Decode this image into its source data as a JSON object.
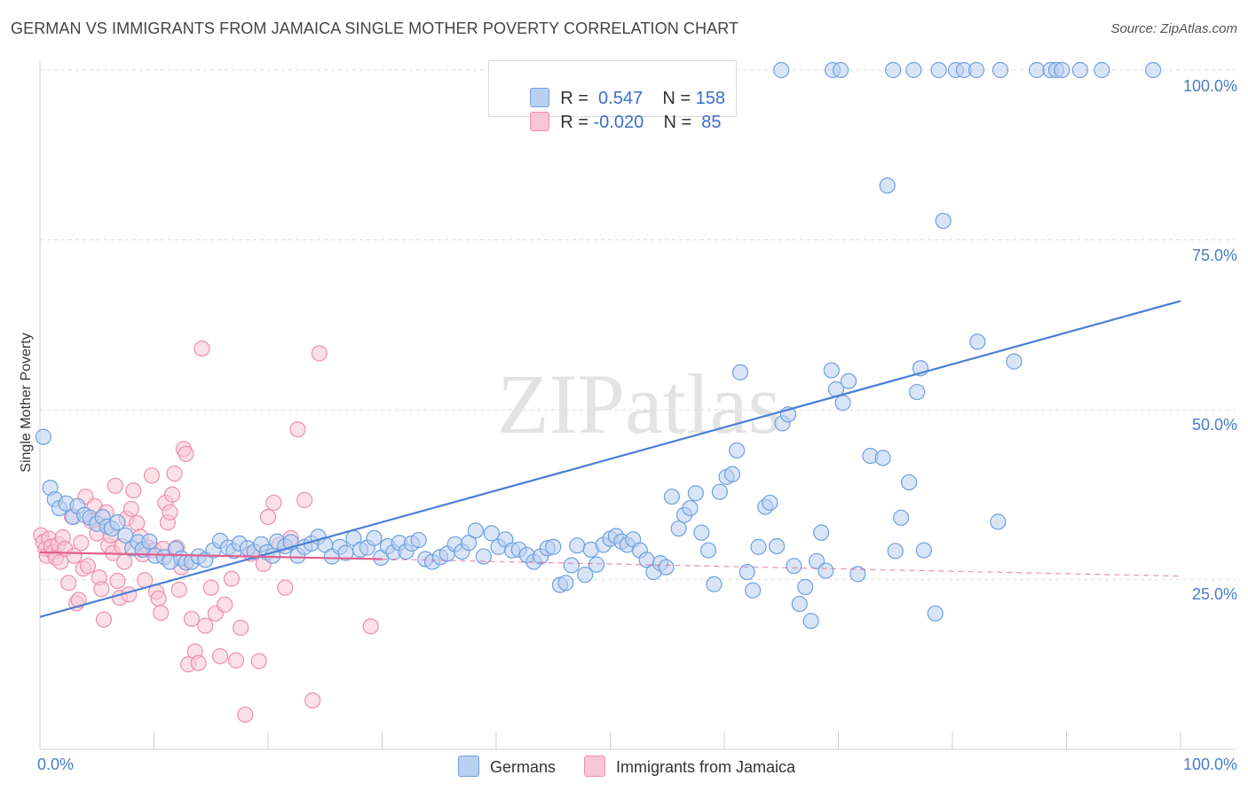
{
  "title": "GERMAN VS IMMIGRANTS FROM JAMAICA SINGLE MOTHER POVERTY CORRELATION CHART",
  "source": "Source: ZipAtlas.com",
  "watermark": "ZIPatlas",
  "legend": {
    "rows": [
      {
        "r_label": "R =",
        "r_value": "0.547",
        "n_label": "N =",
        "n_value": "158",
        "color": "#6fa0e0",
        "fill": "#b9d0f1"
      },
      {
        "r_label": "R =",
        "r_value": "-0.020",
        "n_label": "N =",
        "n_value": "85",
        "color": "#ef8fae",
        "fill": "#f8c6d6"
      }
    ]
  },
  "bottom_legend": [
    {
      "label": "Germans",
      "color": "#6fa0e0",
      "fill": "#b9d0f1"
    },
    {
      "label": "Immigrants from Jamaica",
      "color": "#ef8fae",
      "fill": "#f8c6d6"
    }
  ],
  "chart_data": {
    "type": "scatter",
    "title": "GERMAN VS IMMIGRANTS FROM JAMAICA SINGLE MOTHER POVERTY CORRELATION CHART",
    "xlabel": "",
    "ylabel": "Single Mother Poverty",
    "xlim": [
      0,
      100
    ],
    "ylim": [
      0,
      102
    ],
    "x_tick_labels": [
      "0.0%",
      "100.0%"
    ],
    "y_ticks": [
      25,
      50,
      75,
      100
    ],
    "y_tick_labels": [
      "25.0%",
      "50.0%",
      "75.0%",
      "100.0%"
    ],
    "series": [
      {
        "name": "Germans",
        "color": "#4a7fd4",
        "trend": {
          "x0": 0,
          "y0": 19.5,
          "x1": 100,
          "y1": 66
        },
        "points": [
          [
            0.3,
            46
          ],
          [
            0.9,
            38.5
          ],
          [
            1.3,
            36.8
          ],
          [
            1.7,
            35.5
          ],
          [
            2.3,
            36.2
          ],
          [
            2.9,
            34.2
          ],
          [
            3.3,
            35.8
          ],
          [
            3.9,
            34.5
          ],
          [
            4.4,
            34.1
          ],
          [
            5,
            33.2
          ],
          [
            5.5,
            34.2
          ],
          [
            5.9,
            32.8
          ],
          [
            6.3,
            32.5
          ],
          [
            6.8,
            33.4
          ],
          [
            7.5,
            31.5
          ],
          [
            8.1,
            29.6
          ],
          [
            8.6,
            30.5
          ],
          [
            9,
            29.4
          ],
          [
            9.6,
            30.6
          ],
          [
            10.1,
            28.5
          ],
          [
            10.9,
            28.3
          ],
          [
            11.4,
            27.6
          ],
          [
            11.9,
            29.5
          ],
          [
            12.4,
            28.1
          ],
          [
            12.8,
            27.5
          ],
          [
            13.3,
            27.6
          ],
          [
            13.9,
            28.4
          ],
          [
            14.5,
            27.9
          ],
          [
            15.2,
            29.3
          ],
          [
            15.8,
            30.7
          ],
          [
            16.5,
            29.7
          ],
          [
            17,
            29.2
          ],
          [
            17.5,
            30.3
          ],
          [
            18.2,
            29.6
          ],
          [
            18.8,
            29.1
          ],
          [
            19.4,
            30.2
          ],
          [
            19.9,
            29
          ],
          [
            20.4,
            28.5
          ],
          [
            20.8,
            30.6
          ],
          [
            21.5,
            29.9
          ],
          [
            22,
            30.5
          ],
          [
            22.6,
            28.5
          ],
          [
            23.2,
            29.8
          ],
          [
            23.8,
            30.3
          ],
          [
            24.4,
            31.3
          ],
          [
            25,
            30.1
          ],
          [
            25.6,
            28.4
          ],
          [
            26.3,
            29.8
          ],
          [
            26.8,
            28.9
          ],
          [
            27.5,
            31.1
          ],
          [
            28.1,
            29.4
          ],
          [
            28.7,
            29.7
          ],
          [
            29.3,
            31.1
          ],
          [
            29.9,
            28.2
          ],
          [
            30.5,
            29.9
          ],
          [
            31,
            29
          ],
          [
            31.5,
            30.4
          ],
          [
            32.1,
            29.1
          ],
          [
            32.6,
            30.3
          ],
          [
            33.2,
            30.8
          ],
          [
            33.8,
            28
          ],
          [
            34.4,
            27.6
          ],
          [
            35.1,
            28.3
          ],
          [
            35.7,
            28.8
          ],
          [
            36.4,
            30.2
          ],
          [
            37,
            29.1
          ],
          [
            37.6,
            30.4
          ],
          [
            38.2,
            32.2
          ],
          [
            38.9,
            28.4
          ],
          [
            39.6,
            31.8
          ],
          [
            40.2,
            29.8
          ],
          [
            40.8,
            30.9
          ],
          [
            41.4,
            29.3
          ],
          [
            42,
            29.4
          ],
          [
            42.7,
            28.6
          ],
          [
            43.3,
            27.6
          ],
          [
            43.9,
            28.4
          ],
          [
            44.5,
            29.6
          ],
          [
            45,
            29.8
          ],
          [
            45.6,
            24.2
          ],
          [
            46.1,
            24.5
          ],
          [
            46.6,
            27.1
          ],
          [
            47.1,
            30
          ],
          [
            47.8,
            25.7
          ],
          [
            48.3,
            29.4
          ],
          [
            48.8,
            27.2
          ],
          [
            49.4,
            30.1
          ],
          [
            50,
            31
          ],
          [
            50.5,
            31.4
          ],
          [
            51,
            30.6
          ],
          [
            51.5,
            30.1
          ],
          [
            52,
            30.9
          ],
          [
            52.6,
            29.3
          ],
          [
            53.2,
            27.9
          ],
          [
            53.8,
            26.1
          ],
          [
            54.4,
            27.4
          ],
          [
            54.9,
            26.8
          ],
          [
            55.4,
            37.2
          ],
          [
            56,
            32.5
          ],
          [
            56.5,
            34.5
          ],
          [
            57,
            35.5
          ],
          [
            57.5,
            37.7
          ],
          [
            58,
            31.9
          ],
          [
            58.6,
            29.3
          ],
          [
            59.1,
            24.3
          ],
          [
            59.6,
            37.9
          ],
          [
            60.2,
            40.1
          ],
          [
            60.7,
            40.5
          ],
          [
            61.1,
            44
          ],
          [
            61.4,
            55.5
          ],
          [
            62,
            26.1
          ],
          [
            62.5,
            23.4
          ],
          [
            63,
            29.8
          ],
          [
            63.6,
            35.7
          ],
          [
            64,
            36.3
          ],
          [
            64.6,
            29.9
          ],
          [
            65.1,
            48
          ],
          [
            65.6,
            49.3
          ],
          [
            66.1,
            27
          ],
          [
            66.6,
            21.4
          ],
          [
            67.1,
            23.9
          ],
          [
            67.6,
            18.9
          ],
          [
            68.1,
            27.7
          ],
          [
            68.5,
            31.9
          ],
          [
            68.9,
            26.3
          ],
          [
            69.4,
            55.8
          ],
          [
            69.8,
            53
          ],
          [
            70.4,
            51
          ],
          [
            70.9,
            54.2
          ],
          [
            71.7,
            25.8
          ],
          [
            72.8,
            43.2
          ],
          [
            73.9,
            42.9
          ],
          [
            74.3,
            83
          ],
          [
            75,
            29.2
          ],
          [
            75.5,
            34.1
          ],
          [
            76.2,
            39.3
          ],
          [
            76.9,
            52.6
          ],
          [
            77.2,
            56.1
          ],
          [
            77.5,
            29.3
          ],
          [
            78.5,
            20
          ],
          [
            79.2,
            77.8
          ],
          [
            82.2,
            60
          ],
          [
            84,
            33.5
          ],
          [
            85.4,
            57.1
          ],
          [
            65,
            100
          ],
          [
            69.5,
            100
          ],
          [
            70.2,
            100
          ],
          [
            74.8,
            100
          ],
          [
            76.6,
            100
          ],
          [
            78.8,
            100
          ],
          [
            80.3,
            100
          ],
          [
            81,
            100
          ],
          [
            82.1,
            100
          ],
          [
            84.2,
            100
          ],
          [
            87.4,
            100
          ],
          [
            88.6,
            100
          ],
          [
            89.1,
            100
          ],
          [
            89.6,
            100
          ],
          [
            91.2,
            100
          ],
          [
            93.1,
            100
          ],
          [
            97.6,
            100
          ]
        ]
      },
      {
        "name": "Immigrants from Jamaica",
        "color": "#e0608d",
        "trend": {
          "x0": 0,
          "y0": 29,
          "x1": 30,
          "y1": 28,
          "dash_to": {
            "x": 100,
            "y": 25.5
          }
        },
        "points": [
          [
            0.1,
            31.5
          ],
          [
            0.3,
            30.5
          ],
          [
            0.5,
            29.5
          ],
          [
            0.6,
            28.5
          ],
          [
            0.8,
            31
          ],
          [
            1,
            29.8
          ],
          [
            1.2,
            29
          ],
          [
            1.4,
            28.2
          ],
          [
            1.6,
            30.2
          ],
          [
            1.8,
            27.6
          ],
          [
            2,
            31.2
          ],
          [
            2.2,
            29.5
          ],
          [
            2.5,
            24.5
          ],
          [
            2.8,
            34.3
          ],
          [
            3,
            28.5
          ],
          [
            3.2,
            21.5
          ],
          [
            3.4,
            22
          ],
          [
            3.6,
            30.4
          ],
          [
            3.8,
            26.6
          ],
          [
            4,
            37.2
          ],
          [
            4.2,
            27
          ],
          [
            4.5,
            33.6
          ],
          [
            4.8,
            35.8
          ],
          [
            5,
            31.8
          ],
          [
            5.2,
            25.3
          ],
          [
            5.4,
            23.6
          ],
          [
            5.6,
            19.1
          ],
          [
            5.8,
            34.9
          ],
          [
            6,
            30
          ],
          [
            6.2,
            31.5
          ],
          [
            6.4,
            28.9
          ],
          [
            6.6,
            38.8
          ],
          [
            6.8,
            24.8
          ],
          [
            7,
            22.3
          ],
          [
            7.2,
            29.9
          ],
          [
            7.4,
            27.6
          ],
          [
            7.6,
            34
          ],
          [
            7.8,
            22.8
          ],
          [
            8,
            35.4
          ],
          [
            8.2,
            38.1
          ],
          [
            8.5,
            33.3
          ],
          [
            8.8,
            31.3
          ],
          [
            9,
            28.7
          ],
          [
            9.2,
            24.9
          ],
          [
            9.5,
            29.7
          ],
          [
            9.8,
            40.3
          ],
          [
            10,
            29.3
          ],
          [
            10.2,
            23.2
          ],
          [
            10.4,
            22.2
          ],
          [
            10.6,
            20.1
          ],
          [
            10.8,
            29.5
          ],
          [
            11,
            36.3
          ],
          [
            11.2,
            33.4
          ],
          [
            11.4,
            34.9
          ],
          [
            11.6,
            37.5
          ],
          [
            11.8,
            40.6
          ],
          [
            12,
            29.7
          ],
          [
            12.2,
            23.5
          ],
          [
            12.4,
            26.8
          ],
          [
            12.6,
            44.2
          ],
          [
            12.8,
            43.5
          ],
          [
            13,
            12.5
          ],
          [
            13.3,
            19.2
          ],
          [
            13.6,
            14.4
          ],
          [
            13.9,
            12.7
          ],
          [
            14.2,
            59
          ],
          [
            14.5,
            18.2
          ],
          [
            15,
            23.8
          ],
          [
            15.4,
            20
          ],
          [
            15.8,
            13.7
          ],
          [
            16.2,
            21.3
          ],
          [
            16.8,
            25.1
          ],
          [
            17.2,
            13.1
          ],
          [
            17.6,
            17.9
          ],
          [
            18,
            5.1
          ],
          [
            18.5,
            28.8
          ],
          [
            19.2,
            13
          ],
          [
            19.6,
            27.3
          ],
          [
            20,
            34.2
          ],
          [
            20.5,
            36.3
          ],
          [
            21,
            30.1
          ],
          [
            21.5,
            23.8
          ],
          [
            22,
            31.1
          ],
          [
            22.6,
            47.1
          ],
          [
            23.2,
            36.7
          ],
          [
            23.9,
            7.2
          ],
          [
            24.5,
            58.3
          ],
          [
            29,
            18.1
          ]
        ]
      }
    ]
  }
}
